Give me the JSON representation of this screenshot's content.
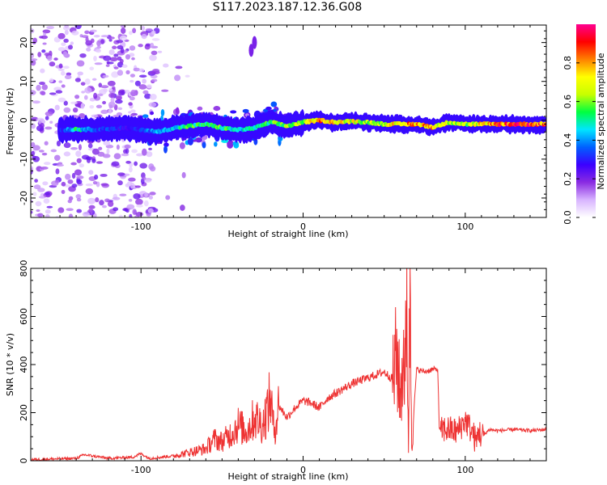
{
  "figure": {
    "title": "S117.2023.187.12.36.G08"
  },
  "chart_data": [
    {
      "type": "heatmap",
      "xlabel": "Height of straight line (km)",
      "ylabel": "Frequency (Hz)",
      "xlim": [
        -168,
        150
      ],
      "ylim": [
        -25,
        24.5
      ],
      "xticks": [
        -100,
        0,
        100
      ],
      "yticks": [
        -20,
        -10,
        0,
        10,
        20
      ],
      "colorbar": {
        "label": "Normalized spectral amplitude",
        "range": [
          0,
          1
        ],
        "ticks": [
          0.0,
          0.2,
          0.4,
          0.6,
          0.8
        ],
        "tick_labels": [
          "0.0",
          "0.2",
          "0.4",
          "0.6",
          "0.8"
        ],
        "colormap": [
          "#ffffff",
          "#d8b4ff",
          "#8a2be2",
          "#3b00ff",
          "#0060ff",
          "#00e5ff",
          "#00ff40",
          "#c8ff00",
          "#ffff00",
          "#ff8000",
          "#ff0000",
          "#ff0090"
        ]
      },
      "ridge": {
        "x": [
          -150,
          -140,
          -130,
          -120,
          -110,
          -100,
          -90,
          -80,
          -70,
          -60,
          -50,
          -40,
          -30,
          -20,
          -10,
          0,
          10,
          20,
          30,
          40,
          50,
          60,
          70,
          80,
          90,
          100,
          110,
          120,
          130,
          140,
          150
        ],
        "freq": [
          -2.5,
          -2.3,
          -2.4,
          -2.2,
          -2.0,
          -2.4,
          -3.0,
          -2.0,
          -1.5,
          -1.0,
          -2.0,
          -2.5,
          -2.0,
          -0.5,
          -1.5,
          -0.5,
          0.0,
          -0.5,
          -0.3,
          -0.5,
          -1.0,
          -1.0,
          -1.0,
          -1.8,
          -0.5,
          -1.0,
          -1.0,
          -1.0,
          -1.0,
          -1.0,
          -1.0
        ],
        "amp": [
          0.3,
          0.55,
          0.4,
          0.35,
          0.3,
          0.35,
          0.45,
          0.5,
          0.6,
          0.55,
          0.6,
          0.5,
          0.55,
          0.6,
          0.65,
          0.7,
          0.9,
          0.8,
          0.75,
          0.7,
          0.7,
          0.85,
          0.9,
          0.85,
          0.7,
          0.65,
          0.8,
          0.95,
          0.95,
          0.95,
          0.9
        ]
      },
      "noise_region_x": [
        -168,
        -90
      ],
      "sparse_blobs": [
        {
          "x": -30,
          "freq": 20
        },
        {
          "x": -32,
          "freq": 18
        }
      ]
    },
    {
      "type": "line",
      "xlabel": "Height of straight line (km)",
      "ylabel": "SNR (10 * v/v)",
      "xlim": [
        -168,
        150
      ],
      "ylim": [
        0,
        800
      ],
      "xticks": [
        -100,
        0,
        100
      ],
      "yticks": [
        0,
        200,
        400,
        600,
        800
      ],
      "color": "#ee3333",
      "series": [
        {
          "x": [
            -168,
            -140,
            -135,
            -120,
            -105,
            -100,
            -95,
            -80,
            -70,
            -60,
            -55,
            -50,
            -45,
            -40,
            -35,
            -30,
            -25,
            -20,
            -18,
            -15,
            -10,
            -5,
            0,
            5,
            10,
            15,
            20,
            30,
            40,
            50,
            55,
            58,
            60,
            62,
            63,
            64,
            65,
            66,
            67,
            70,
            75,
            80,
            83,
            84,
            85,
            86,
            90,
            95,
            100,
            105,
            107,
            108,
            110,
            115,
            120,
            130,
            140,
            150
          ],
          "y": [
            5,
            10,
            25,
            10,
            15,
            30,
            10,
            20,
            35,
            50,
            90,
            80,
            110,
            150,
            120,
            180,
            150,
            260,
            120,
            230,
            180,
            220,
            250,
            240,
            220,
            260,
            280,
            320,
            345,
            370,
            340,
            440,
            250,
            480,
            330,
            740,
            50,
            800,
            60,
            380,
            370,
            380,
            380,
            140,
            120,
            130,
            130,
            120,
            170,
            110,
            70,
            130,
            100,
            130,
            125,
            130,
            125,
            130
          ]
        }
      ]
    }
  ]
}
